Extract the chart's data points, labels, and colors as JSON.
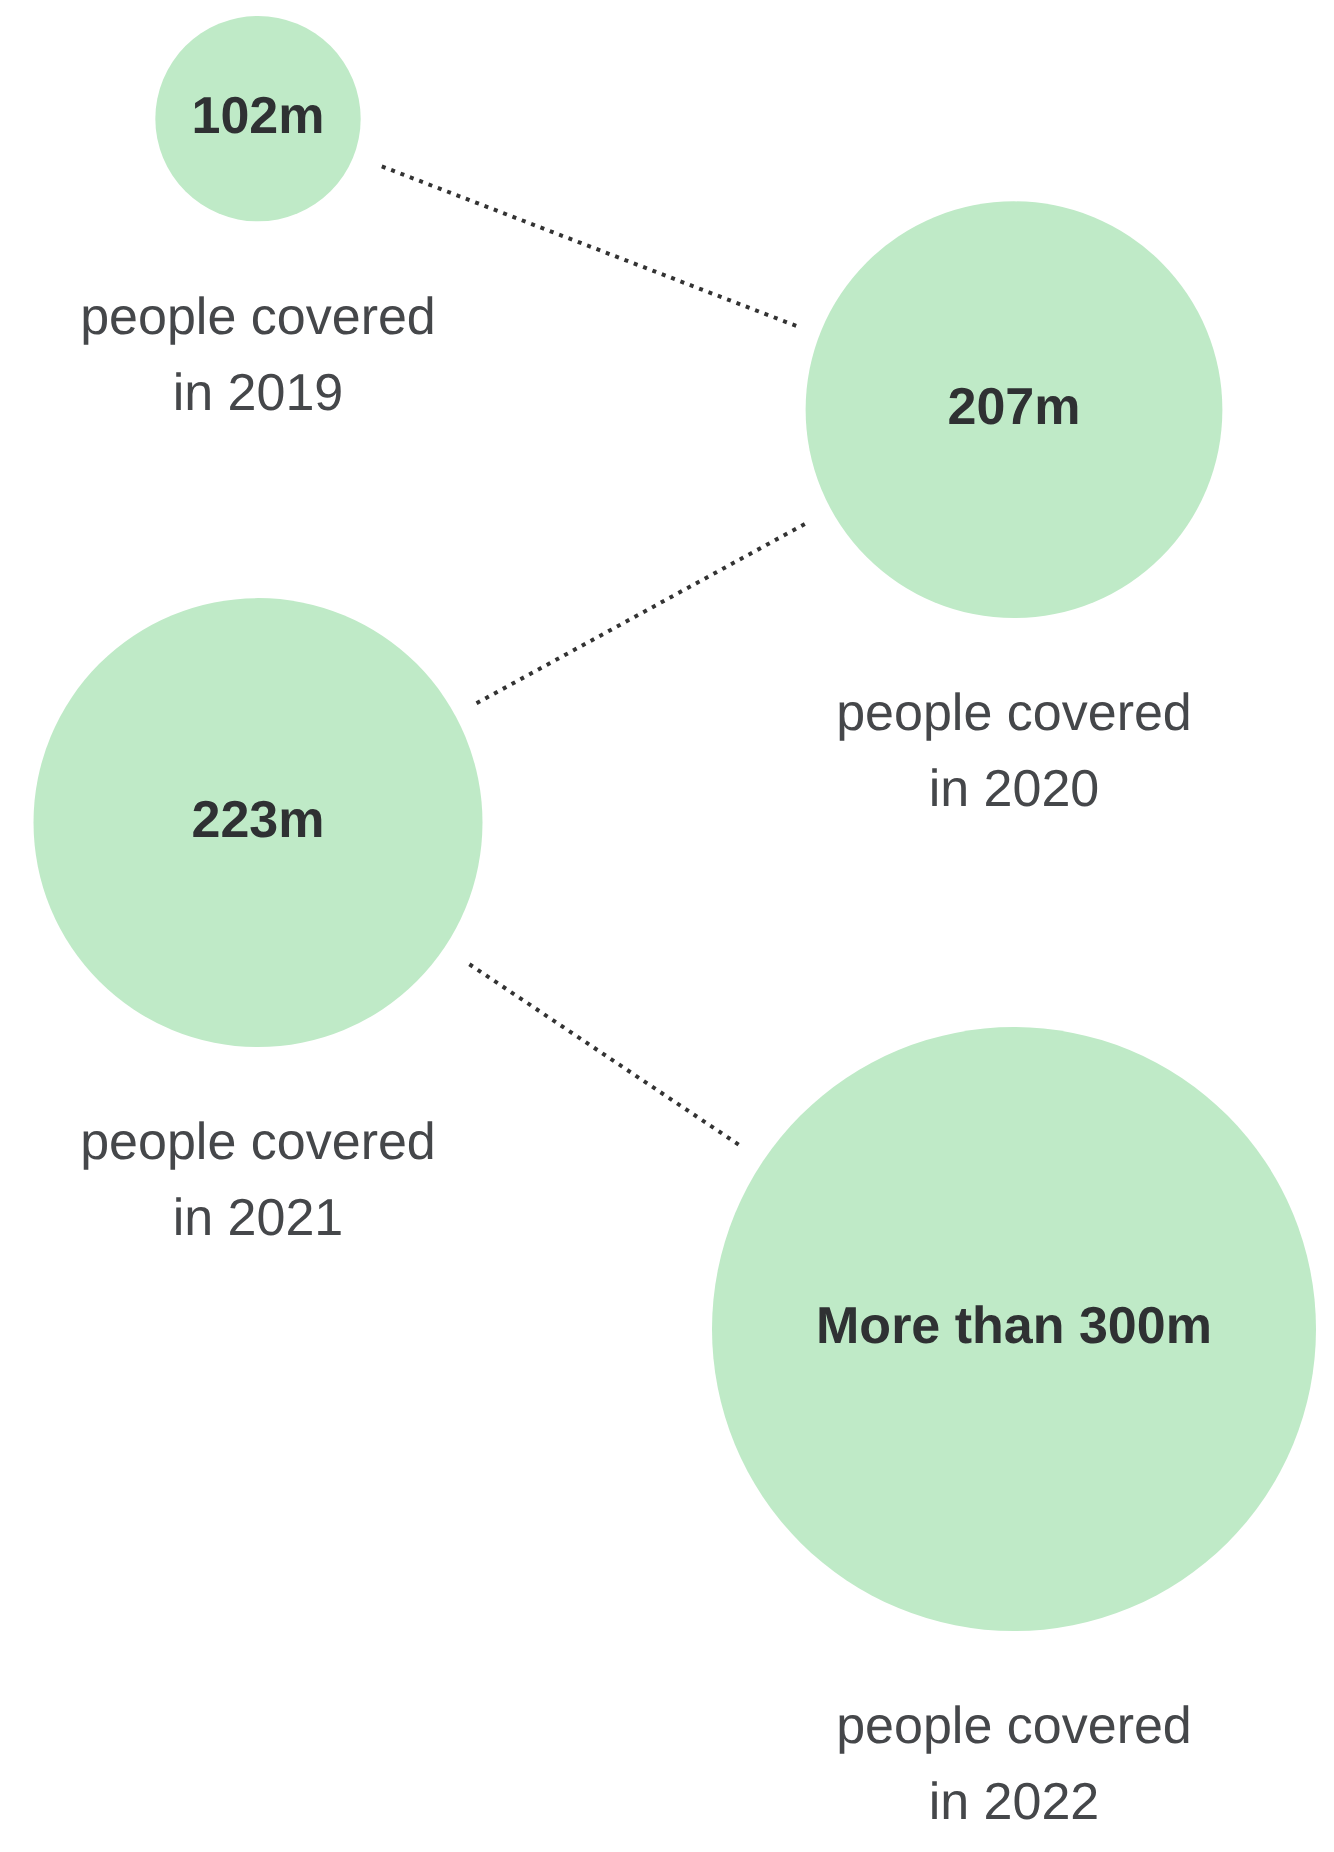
{
  "chart_data": {
    "type": "other",
    "categories": [
      "people covered in 2019",
      "people covered in 2020",
      "people covered in 2021",
      "people covered in 2022"
    ],
    "values": [
      102,
      207,
      223,
      300
    ],
    "value_labels": [
      "102m",
      "207m",
      "223m",
      "300m"
    ],
    "annotations": [
      {
        "text": "More than",
        "x": "people covered in 2022"
      }
    ],
    "color": "#bfeac7"
  }
}
